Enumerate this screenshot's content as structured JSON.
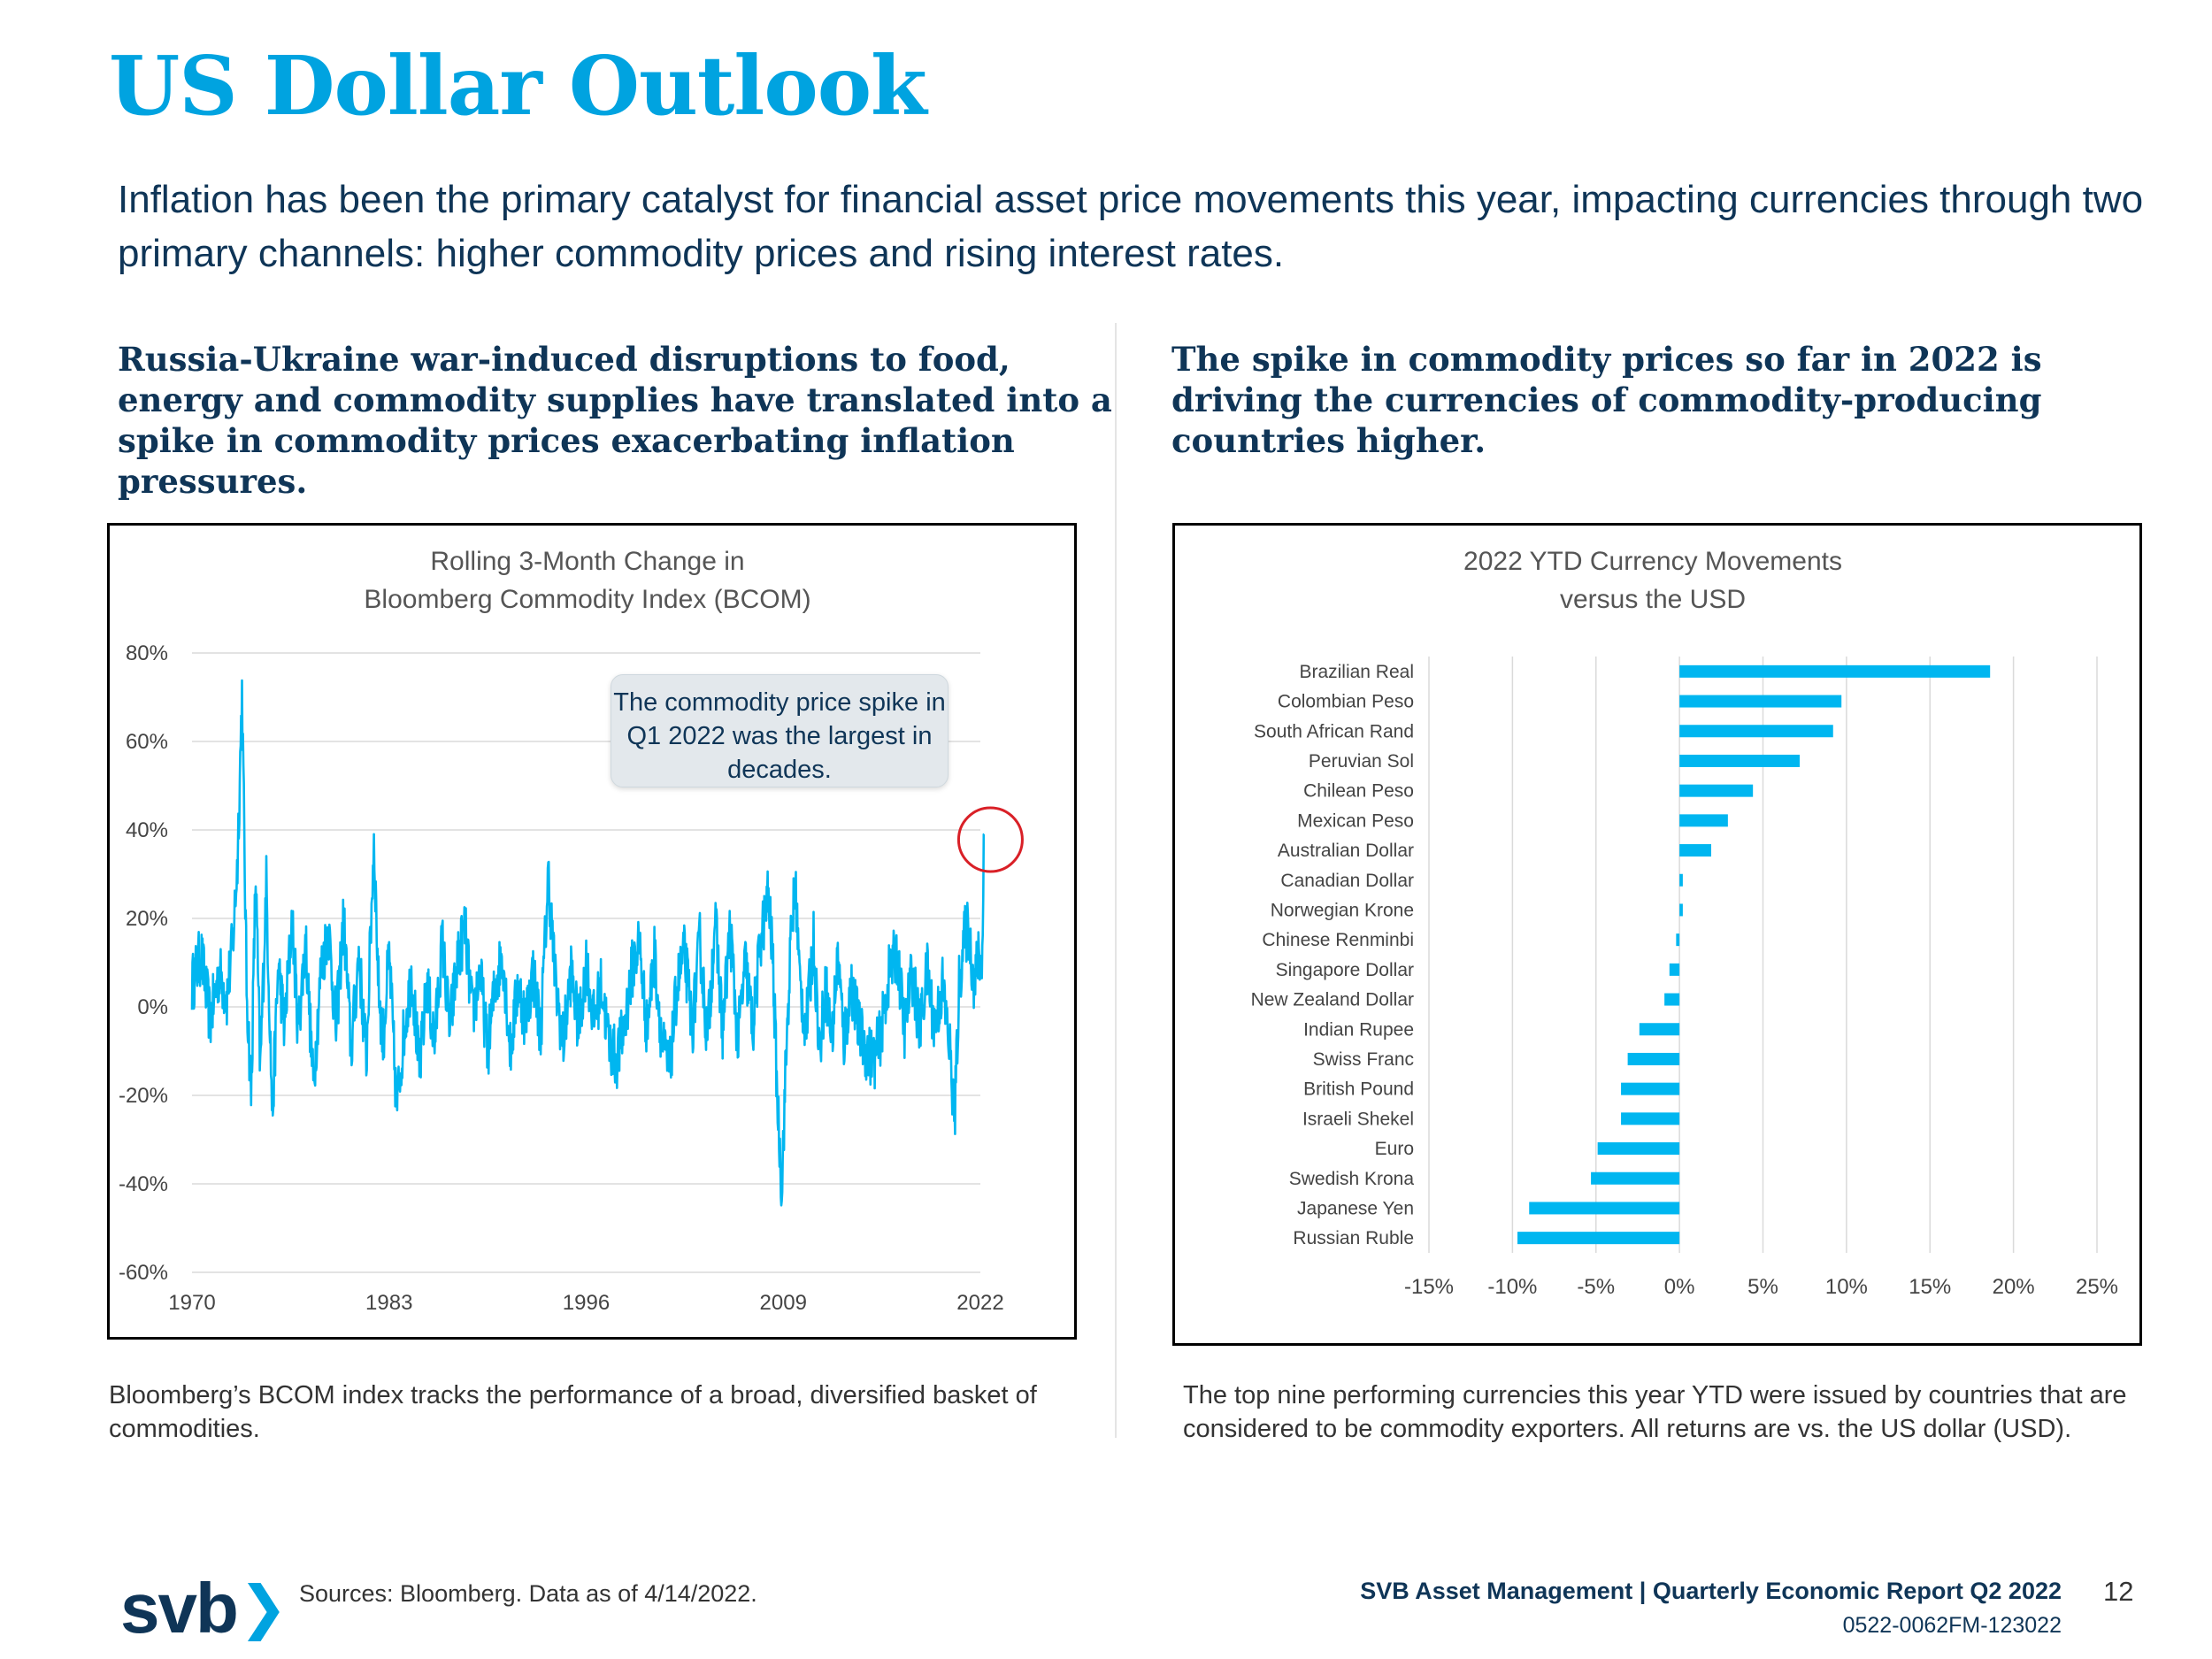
{
  "page": {
    "title": "US Dollar Outlook",
    "intro": "Inflation has been the primary catalyst for financial asset price movements this year, impacting currencies through two primary channels: higher commodity prices and rising interest rates.",
    "left_heading": "Russia-Ukraine war-induced disruptions to food, energy and commodity supplies have translated into a spike in commodity prices exacerbating inflation pressures.",
    "right_heading": "The spike in commodity prices so far in 2022 is driving the currencies of commodity-producing countries higher.",
    "left_caption": "Bloomberg’s BCOM index tracks the performance of a broad, diversified basket of commodities.",
    "right_caption": "The top nine performing currencies this year YTD were issued by countries that are considered to be commodity exporters. All returns are vs. the US dollar (USD).",
    "sources": "Sources: Bloomberg. Data as of 4/14/2022.",
    "footer_report": "SVB Asset Management | Quarterly Economic Report Q2 2022",
    "footer_code": "0522-0062FM-123022",
    "page_number": "12",
    "logo_text": "svb",
    "logo_chevron": "❯"
  },
  "colors": {
    "accent": "#00a3e0",
    "navy": "#0f3557",
    "bar": "#00b6f0",
    "highlight_circle": "#d92027"
  },
  "chart_data": [
    {
      "type": "line",
      "title_lines": [
        "Rolling 3-Month Change in",
        "Bloomberg Commodity Index (BCOM)"
      ],
      "x_ticks": [
        "1970",
        "1983",
        "1996",
        "2009",
        "2022"
      ],
      "y_ticks": [
        "80%",
        "60%",
        "40%",
        "20%",
        "0%",
        "-20%",
        "-40%",
        "-60%"
      ],
      "xlim": [
        1970,
        2022
      ],
      "ylim": [
        -60,
        80
      ],
      "grid": true,
      "callout": "The commodity price spike in Q1 2022 was the largest in decades.",
      "highlight": {
        "x": 2022.2,
        "y": 39
      },
      "series_anchor_points": [
        [
          1970.0,
          5
        ],
        [
          1970.6,
          12
        ],
        [
          1971.2,
          -3
        ],
        [
          1971.8,
          8
        ],
        [
          1972.3,
          2
        ],
        [
          1972.7,
          15
        ],
        [
          1973.0,
          33
        ],
        [
          1973.3,
          71
        ],
        [
          1973.6,
          5
        ],
        [
          1973.9,
          -20
        ],
        [
          1974.2,
          30
        ],
        [
          1974.5,
          -15
        ],
        [
          1974.9,
          28
        ],
        [
          1975.3,
          -25
        ],
        [
          1975.7,
          10
        ],
        [
          1976.1,
          -5
        ],
        [
          1976.6,
          20
        ],
        [
          1977.0,
          -5
        ],
        [
          1977.5,
          15
        ],
        [
          1978.0,
          -18
        ],
        [
          1978.5,
          8
        ],
        [
          1979.0,
          18
        ],
        [
          1979.5,
          -5
        ],
        [
          1980.0,
          20
        ],
        [
          1980.5,
          -10
        ],
        [
          1981.0,
          12
        ],
        [
          1981.5,
          -12
        ],
        [
          1982.0,
          38
        ],
        [
          1982.3,
          5
        ],
        [
          1982.6,
          -8
        ],
        [
          1983.0,
          12
        ],
        [
          1983.5,
          -23
        ],
        [
          1984.0,
          -5
        ],
        [
          1984.5,
          8
        ],
        [
          1985.0,
          -15
        ],
        [
          1985.5,
          5
        ],
        [
          1986.0,
          -8
        ],
        [
          1986.5,
          15
        ],
        [
          1987.0,
          -5
        ],
        [
          1987.5,
          10
        ],
        [
          1988.0,
          18
        ],
        [
          1988.5,
          -2
        ],
        [
          1989.0,
          8
        ],
        [
          1989.5,
          -10
        ],
        [
          1990.0,
          5
        ],
        [
          1990.5,
          12
        ],
        [
          1991.0,
          -10
        ],
        [
          1991.5,
          5
        ],
        [
          1992.0,
          -3
        ],
        [
          1992.5,
          8
        ],
        [
          1993.0,
          -6
        ],
        [
          1993.5,
          30
        ],
        [
          1994.0,
          4
        ],
        [
          1994.5,
          -8
        ],
        [
          1995.0,
          8
        ],
        [
          1995.5,
          -5
        ],
        [
          1996.0,
          10
        ],
        [
          1996.5,
          -3
        ],
        [
          1997.0,
          5
        ],
        [
          1997.5,
          -8
        ],
        [
          1998.0,
          -12
        ],
        [
          1998.5,
          -5
        ],
        [
          1999.0,
          8
        ],
        [
          1999.5,
          15
        ],
        [
          2000.0,
          -5
        ],
        [
          2000.5,
          12
        ],
        [
          2001.0,
          -8
        ],
        [
          2001.5,
          -15
        ],
        [
          2002.0,
          5
        ],
        [
          2002.5,
          12
        ],
        [
          2003.0,
          -5
        ],
        [
          2003.5,
          15
        ],
        [
          2004.0,
          -8
        ],
        [
          2004.5,
          20
        ],
        [
          2005.0,
          -5
        ],
        [
          2005.5,
          18
        ],
        [
          2006.0,
          -8
        ],
        [
          2006.5,
          10
        ],
        [
          2007.0,
          -5
        ],
        [
          2007.5,
          15
        ],
        [
          2008.0,
          25
        ],
        [
          2008.3,
          12
        ],
        [
          2008.6,
          -20
        ],
        [
          2008.9,
          -41
        ],
        [
          2009.2,
          -10
        ],
        [
          2009.5,
          15
        ],
        [
          2009.8,
          28
        ],
        [
          2010.1,
          5
        ],
        [
          2010.5,
          -5
        ],
        [
          2011.0,
          15
        ],
        [
          2011.4,
          -10
        ],
        [
          2011.8,
          5
        ],
        [
          2012.2,
          -8
        ],
        [
          2012.6,
          12
        ],
        [
          2013.0,
          -8
        ],
        [
          2013.5,
          5
        ],
        [
          2014.0,
          -5
        ],
        [
          2014.5,
          -10
        ],
        [
          2015.0,
          -12
        ],
        [
          2015.5,
          -5
        ],
        [
          2016.0,
          8
        ],
        [
          2016.5,
          12
        ],
        [
          2017.0,
          -5
        ],
        [
          2017.5,
          8
        ],
        [
          2018.0,
          -5
        ],
        [
          2018.5,
          8
        ],
        [
          2019.0,
          -5
        ],
        [
          2019.5,
          5
        ],
        [
          2020.0,
          -10
        ],
        [
          2020.3,
          -26
        ],
        [
          2020.6,
          5
        ],
        [
          2020.9,
          15
        ],
        [
          2021.2,
          18
        ],
        [
          2021.6,
          5
        ],
        [
          2021.9,
          12
        ],
        [
          2022.1,
          8
        ],
        [
          2022.25,
          39
        ]
      ]
    },
    {
      "type": "bar",
      "orientation": "horizontal",
      "title_lines": [
        "2022 YTD Currency Movements",
        "versus the USD"
      ],
      "categories": [
        "Brazilian Real",
        "Colombian Peso",
        "South African Rand",
        "Peruvian Sol",
        "Chilean Peso",
        "Mexican Peso",
        "Australian Dollar",
        "Canadian Dollar",
        "Norwegian Krone",
        "Chinese Renminbi",
        "Singapore Dollar",
        "New Zealand Dollar",
        "Indian Rupee",
        "Swiss Franc",
        "British Pound",
        "Israeli Shekel",
        "Euro",
        "Swedish Krona",
        "Japanese Yen",
        "Russian Ruble"
      ],
      "values": [
        18.6,
        9.7,
        9.2,
        7.2,
        4.4,
        2.9,
        1.9,
        0.2,
        0.2,
        -0.2,
        -0.6,
        -0.9,
        -2.4,
        -3.1,
        -3.5,
        -3.5,
        -4.9,
        -5.3,
        -9.0,
        -9.7
      ],
      "x_ticks": [
        "-15%",
        "-10%",
        "-5%",
        "0%",
        "5%",
        "10%",
        "15%",
        "20%",
        "25%"
      ],
      "xlim": [
        -15,
        25
      ],
      "grid": true
    }
  ]
}
